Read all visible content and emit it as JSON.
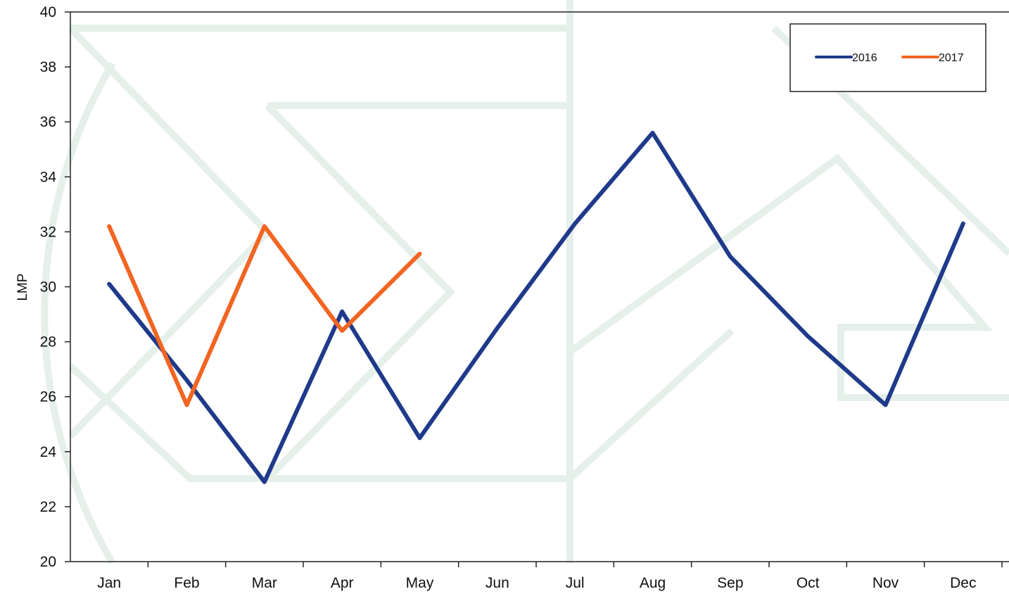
{
  "chart_data": {
    "type": "line",
    "categories": [
      "Jan",
      "Feb",
      "Mar",
      "Apr",
      "May",
      "Jun",
      "Jul",
      "Aug",
      "Sep",
      "Oct",
      "Nov",
      "Dec"
    ],
    "series": [
      {
        "name": "2016",
        "color": "#1f3a8a",
        "values": [
          30.1,
          26.6,
          22.9,
          29.1,
          24.5,
          28.5,
          32.3,
          35.6,
          31.1,
          28.2,
          25.7,
          32.3
        ]
      },
      {
        "name": "2017",
        "color": "#f26522",
        "values": [
          32.2,
          25.7,
          32.2,
          28.4,
          31.2,
          null,
          null,
          null,
          null,
          null,
          null,
          null
        ]
      }
    ],
    "xlabel": "",
    "ylabel": "LMP",
    "ylim": [
      20,
      40
    ],
    "yticks": [
      20,
      22,
      24,
      26,
      28,
      30,
      32,
      34,
      36,
      38,
      40
    ],
    "grid": false,
    "legend": "top-right"
  }
}
